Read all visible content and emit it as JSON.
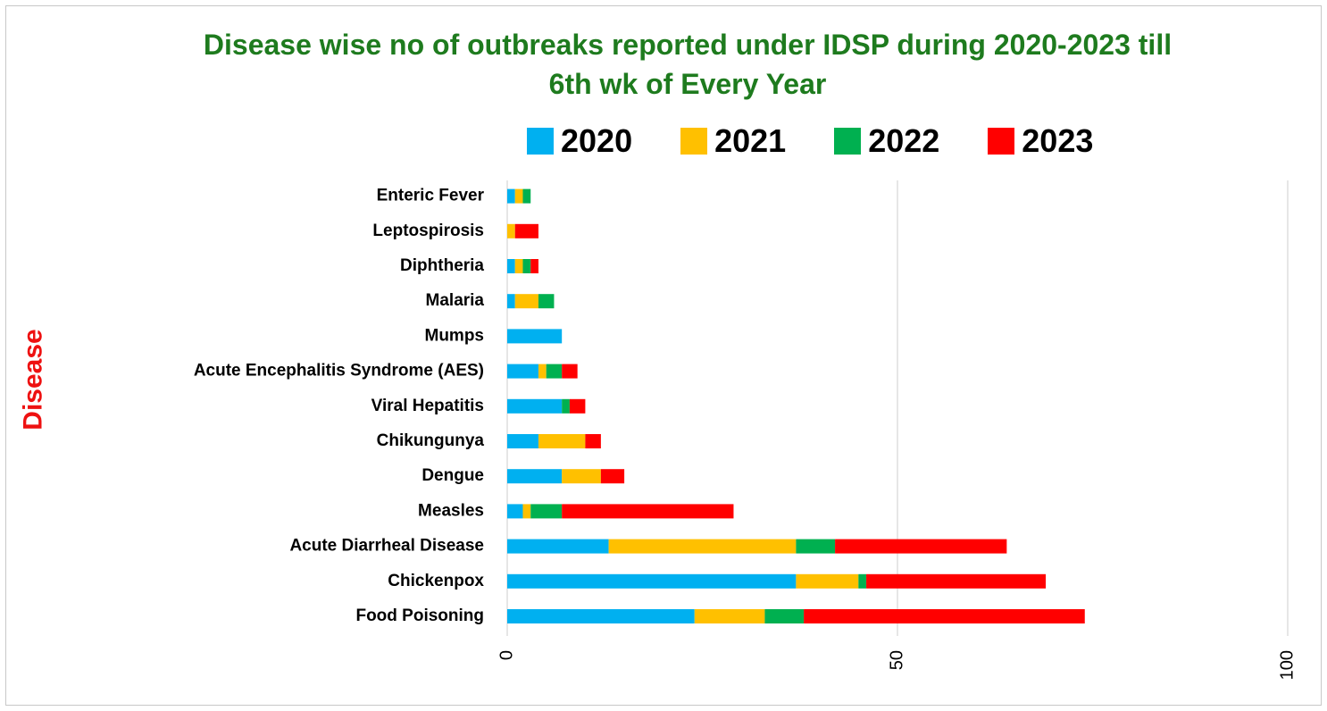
{
  "chart_data": {
    "type": "bar",
    "orientation": "horizontal",
    "stacked": true,
    "title": "Disease wise no of outbreaks reported under IDSP during  2020-2023 till\n6th wk of Every Year",
    "ylabel": "Disease",
    "xlabel": "",
    "xlim": [
      0,
      100
    ],
    "x_ticks": [
      "0",
      "50",
      "100"
    ],
    "grid": "vertical",
    "legend_position": "top",
    "categories": [
      "Food Poisoning",
      "Chickenpox",
      "Acute Diarrheal Disease",
      "Measles",
      "Dengue",
      "Chikungunya",
      "Viral Hepatitis",
      "Acute Encephalitis Syndrome (AES)",
      "Mumps",
      "Malaria",
      "Diphtheria",
      "Leptospirosis",
      "Enteric Fever"
    ],
    "series": [
      {
        "name": "2020",
        "color": "#00b0f0",
        "values": [
          24,
          37,
          13,
          2,
          7,
          4,
          7,
          4,
          7,
          1,
          1,
          0,
          1
        ]
      },
      {
        "name": "2021",
        "color": "#ffc000",
        "values": [
          9,
          8,
          24,
          1,
          5,
          6,
          0,
          1,
          0,
          3,
          1,
          1,
          1
        ]
      },
      {
        "name": "2022",
        "color": "#00b050",
        "values": [
          5,
          1,
          5,
          4,
          0,
          0,
          1,
          2,
          0,
          2,
          1,
          0,
          1
        ]
      },
      {
        "name": "2023",
        "color": "#ff0000",
        "values": [
          36,
          23,
          22,
          22,
          3,
          2,
          2,
          2,
          0,
          0,
          1,
          3,
          0
        ]
      }
    ]
  }
}
